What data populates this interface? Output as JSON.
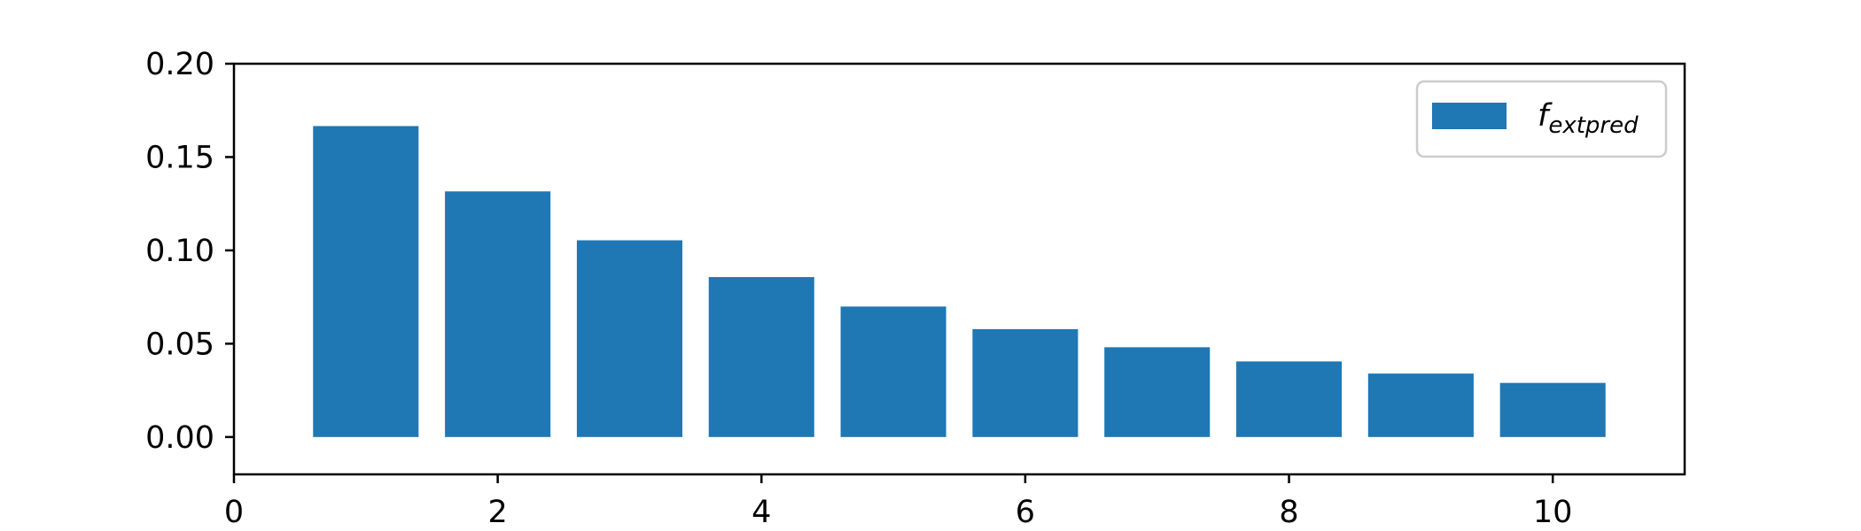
{
  "chart_data": {
    "type": "bar",
    "x": [
      1,
      2,
      3,
      4,
      5,
      6,
      7,
      8,
      9,
      10
    ],
    "values": [
      0.1666,
      0.1316,
      0.1054,
      0.0857,
      0.0699,
      0.0578,
      0.0481,
      0.0405,
      0.034,
      0.029
    ],
    "bar_width": 0.8,
    "xlim": [
      0,
      11
    ],
    "ylim": [
      -0.02,
      0.2
    ],
    "xticks": [
      "0",
      "2",
      "4",
      "6",
      "8",
      "10"
    ],
    "yticks": [
      "0.00",
      "0.05",
      "0.10",
      "0.15",
      "0.20"
    ],
    "bar_color": "#1f77b4",
    "grid": false,
    "legend": {
      "placement": "upper right",
      "label_main": "f",
      "label_sub": "extpred"
    }
  }
}
